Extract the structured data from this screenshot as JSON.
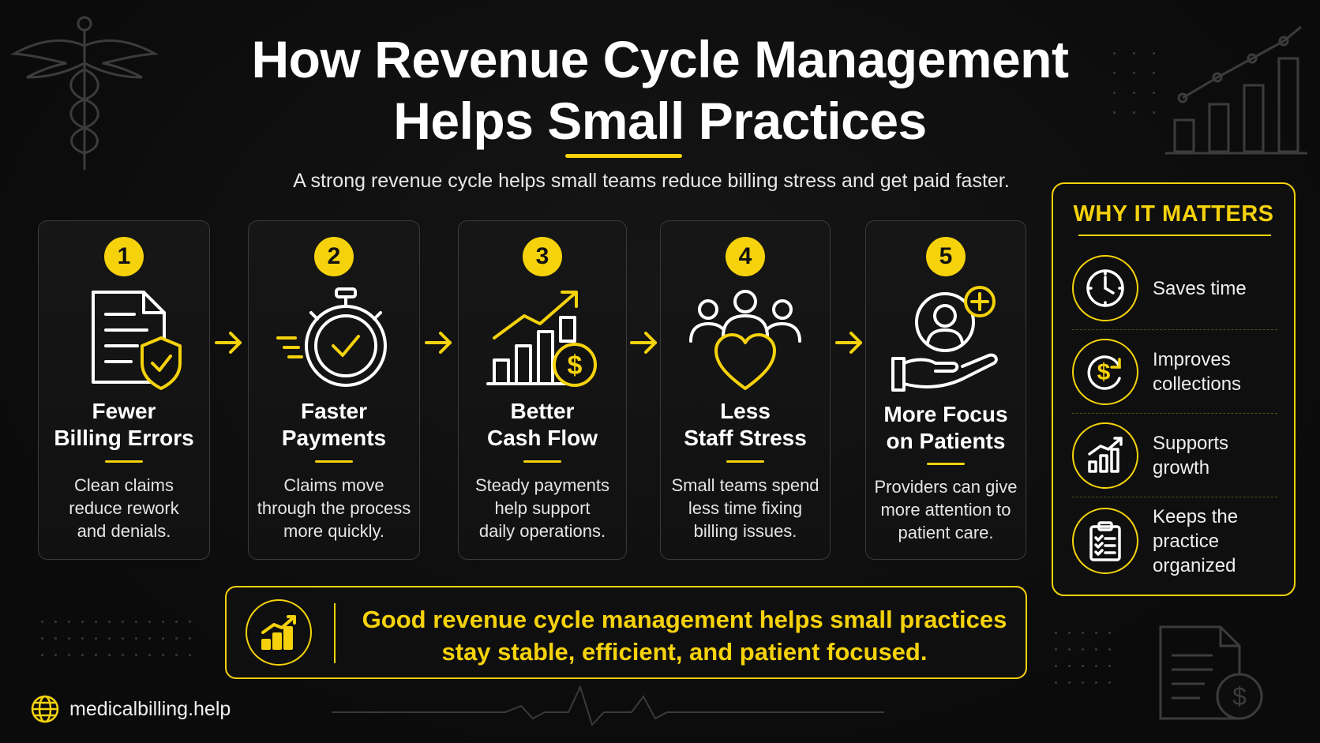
{
  "header": {
    "title_line1": "How Revenue Cycle Management",
    "title_line2": "Helps Small Practices",
    "subtitle": "A strong revenue cycle helps small teams reduce billing stress and get paid faster."
  },
  "cards": [
    {
      "number": "1",
      "title": "Fewer\nBilling Errors",
      "description": "Clean claims\nreduce rework\nand denials.",
      "icon": "document-shield-check-icon"
    },
    {
      "number": "2",
      "title": "Faster\nPayments",
      "description": "Claims move\nthrough the process\nmore quickly.",
      "icon": "stopwatch-check-icon"
    },
    {
      "number": "3",
      "title": "Better\nCash Flow",
      "description": "Steady payments\nhelp support\ndaily operations.",
      "icon": "bar-chart-dollar-icon"
    },
    {
      "number": "4",
      "title": "Less\nStaff Stress",
      "description": "Small teams spend\nless time fixing\nbilling issues.",
      "icon": "team-heart-icon"
    },
    {
      "number": "5",
      "title": "More Focus\non Patients",
      "description": "Providers can give\nmore attention to\npatient care.",
      "icon": "hand-patient-plus-icon"
    }
  ],
  "why_it_matters": {
    "title": "WHY IT MATTERS",
    "items": [
      {
        "label": "Saves time",
        "icon": "clock-icon"
      },
      {
        "label": "Improves\ncollections",
        "icon": "dollar-refresh-icon"
      },
      {
        "label": "Supports\ngrowth",
        "icon": "growth-chart-icon"
      },
      {
        "label": "Keeps the\npractice\norganized",
        "icon": "clipboard-checklist-icon"
      }
    ]
  },
  "banner": {
    "text": "Good revenue cycle management helps small practices\nstay stable, efficient, and patient focused.",
    "icon": "chart-up-icon"
  },
  "footer": {
    "site": "medicalbilling.help",
    "icon": "globe-icon"
  },
  "colors": {
    "accent": "#f5d20c",
    "background": "#0d0d0d",
    "text": "#ffffff"
  }
}
